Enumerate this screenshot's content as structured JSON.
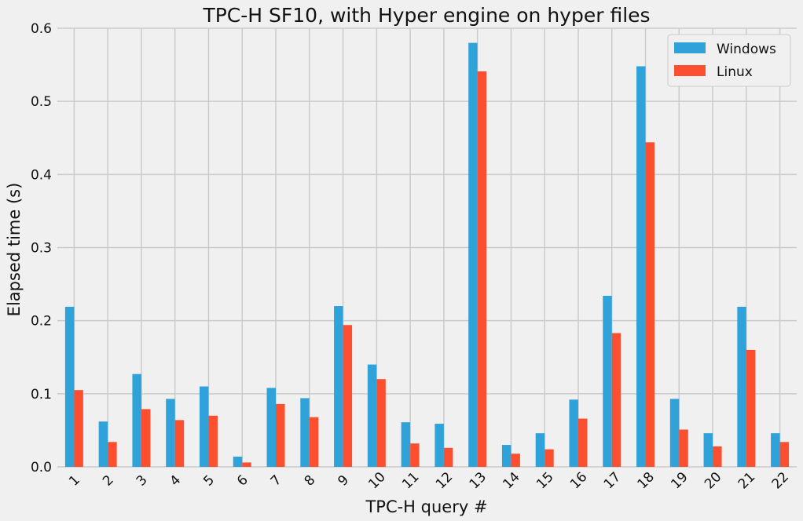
{
  "chart_data": {
    "type": "bar",
    "title": "TPC-H SF10, with Hyper engine on hyper files",
    "xlabel": "TPC-H query #",
    "ylabel": "Elapsed time (s)",
    "ylim": [
      0,
      0.6
    ],
    "yticks": [
      "0.0",
      "0.1",
      "0.2",
      "0.3",
      "0.4",
      "0.5",
      "0.6"
    ],
    "grid": true,
    "legend_position": "top-right",
    "categories": [
      "1",
      "2",
      "3",
      "4",
      "5",
      "6",
      "7",
      "8",
      "9",
      "10",
      "11",
      "12",
      "13",
      "14",
      "15",
      "16",
      "17",
      "18",
      "19",
      "20",
      "21",
      "22"
    ],
    "series": [
      {
        "name": "Windows",
        "color": "#30a2da",
        "values": [
          0.219,
          0.062,
          0.127,
          0.093,
          0.11,
          0.014,
          0.108,
          0.094,
          0.22,
          0.14,
          0.061,
          0.059,
          0.58,
          0.03,
          0.046,
          0.092,
          0.234,
          0.548,
          0.093,
          0.046,
          0.219,
          0.046
        ]
      },
      {
        "name": "Linux",
        "color": "#fc4f30",
        "values": [
          0.105,
          0.034,
          0.079,
          0.064,
          0.07,
          0.006,
          0.086,
          0.068,
          0.194,
          0.12,
          0.032,
          0.026,
          0.541,
          0.018,
          0.024,
          0.066,
          0.183,
          0.444,
          0.051,
          0.028,
          0.16,
          0.034
        ]
      }
    ]
  }
}
